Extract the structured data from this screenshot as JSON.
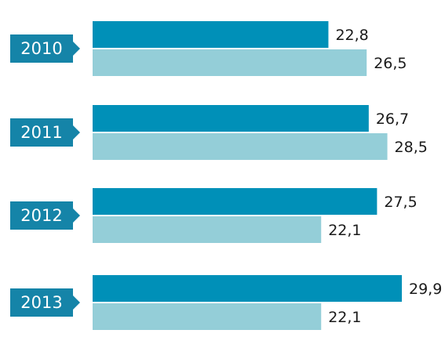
{
  "chart_data": {
    "type": "bar",
    "orientation": "horizontal",
    "categories": [
      "2010",
      "2011",
      "2012",
      "2013"
    ],
    "series": [
      {
        "values": [
          22.8,
          26.7,
          27.5,
          29.9
        ],
        "color": "#0090b8"
      },
      {
        "values": [
          26.5,
          28.5,
          22.1,
          22.1
        ],
        "color": "#94ced8"
      }
    ],
    "value_labels": [
      [
        "22,8",
        "26,5"
      ],
      [
        "26,7",
        "28,5"
      ],
      [
        "27,5",
        "22,1"
      ],
      [
        "29,9",
        "22,1"
      ]
    ],
    "xlim": [
      0,
      29.9
    ],
    "grid": false,
    "legend": "none",
    "year_box_color": "#1584a8"
  }
}
